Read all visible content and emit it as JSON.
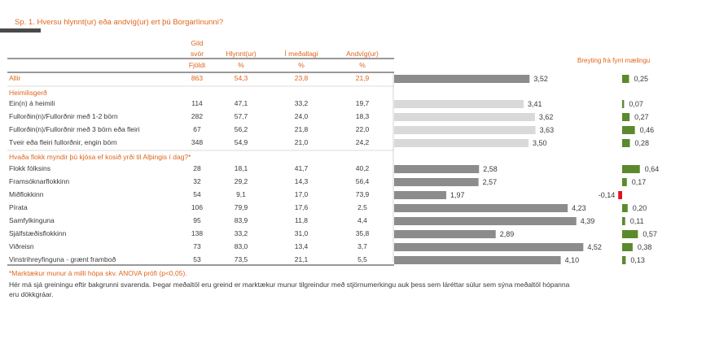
{
  "question": "Sp. 1. Hversu hlynnt(ur) eða andvíg(ur) ert þú Borgarlínunni?",
  "headers": {
    "gild_top": "Gild",
    "gild_mid": "svör",
    "fjoldi": "Fjöldi",
    "hlynnt": "Hlynnt(ur)",
    "medallagi": "Í meðallagi",
    "andvig": "Andvíg(ur)",
    "pct": "%"
  },
  "change_header": "Breyting frá fyrri mælingu",
  "sections": [
    {
      "heading": ""
    },
    {
      "heading": "Heimilisgerð"
    },
    {
      "heading": "Hvaða flokk myndir þú kjósa ef kosið yrði til Alþingis í dag?*"
    }
  ],
  "rows": [
    {
      "label": "Allir",
      "n": "863",
      "hlynnt": "54,3",
      "medallagi": "23,8",
      "andvig": "21,9",
      "mean": "3,52",
      "change": "0,25"
    },
    {
      "label": "Ein(n) á heimili",
      "n": "114",
      "hlynnt": "47,1",
      "medallagi": "33,2",
      "andvig": "19,7",
      "mean": "3,41",
      "change": "0,07"
    },
    {
      "label": "Fullorðin(n)/Fullorðnir með 1-2 börn",
      "n": "282",
      "hlynnt": "57,7",
      "medallagi": "24,0",
      "andvig": "18,3",
      "mean": "3,62",
      "change": "0,27"
    },
    {
      "label": "Fullorðin(n)/Fullorðnir með 3 börn eða fleiri",
      "n": "67",
      "hlynnt": "56,2",
      "medallagi": "21,8",
      "andvig": "22,0",
      "mean": "3,63",
      "change": "0,46"
    },
    {
      "label": "Tveir eða fleiri fullorðnir, engin börn",
      "n": "348",
      "hlynnt": "54,9",
      "medallagi": "21,0",
      "andvig": "24,2",
      "mean": "3,50",
      "change": "0,28"
    },
    {
      "label": "Flokk fólksins",
      "n": "28",
      "hlynnt": "18,1",
      "medallagi": "41,7",
      "andvig": "40,2",
      "mean": "2,58",
      "change": "0,64"
    },
    {
      "label": "Framsóknarflokkinn",
      "n": "32",
      "hlynnt": "29,2",
      "medallagi": "14,3",
      "andvig": "56,4",
      "mean": "2,57",
      "change": "0,17"
    },
    {
      "label": "Miðflokkinn",
      "n": "54",
      "hlynnt": "9,1",
      "medallagi": "17,0",
      "andvig": "73,9",
      "mean": "1,97",
      "change": "-0,14"
    },
    {
      "label": "Pírata",
      "n": "106",
      "hlynnt": "79,9",
      "medallagi": "17,6",
      "andvig": "2,5",
      "mean": "4,23",
      "change": "0,20"
    },
    {
      "label": "Samfylkinguna",
      "n": "95",
      "hlynnt": "83,9",
      "medallagi": "11,8",
      "andvig": "4,4",
      "mean": "4,39",
      "change": "0,11"
    },
    {
      "label": "Sjálfstæðisflokkinn",
      "n": "138",
      "hlynnt": "33,2",
      "medallagi": "31,0",
      "andvig": "35,8",
      "mean": "2,89",
      "change": "0,57"
    },
    {
      "label": "Viðreisn",
      "n": "73",
      "hlynnt": "83,0",
      "medallagi": "13,4",
      "andvig": "3,7",
      "mean": "4,52",
      "change": "0,38"
    },
    {
      "label": "Vinstrihreyfinguna - grænt framboð",
      "n": "53",
      "hlynnt": "73,5",
      "medallagi": "21,1",
      "andvig": "5,5",
      "mean": "4,10",
      "change": "0,13"
    }
  ],
  "chart_data": [
    {
      "type": "bar",
      "categories": [
        "Allir",
        "Ein(n) á heimili",
        "Fullorðin(n)/Fullorðnir með 1-2 börn",
        "Fullorðin(n)/Fullorðnir með 3 börn eða fleiri",
        "Tveir eða fleiri fullorðnir, engin börn",
        "Flokk fólksins",
        "Framsóknarflokkinn",
        "Miðflokkinn",
        "Pírata",
        "Samfylkinguna",
        "Sjálfstæðisflokkinn",
        "Viðreisn",
        "Vinstrihreyfinguna - grænt framboð"
      ],
      "values": [
        3.52,
        3.41,
        3.62,
        3.63,
        3.5,
        2.58,
        2.57,
        1.97,
        4.23,
        4.39,
        2.89,
        4.52,
        4.1
      ],
      "xlim": [
        1,
        5
      ],
      "orientation": "horizontal",
      "colors": {
        "main": "#8c8c8c",
        "light": "#d9d9d9"
      }
    },
    {
      "type": "bar",
      "title": "Breyting frá fyrri mælingu",
      "categories": [
        "Allir",
        "Ein(n) á heimili",
        "Fullorðin(n)/Fullorðnir með 1-2 börn",
        "Fullorðin(n)/Fullorðnir með 3 börn eða fleiri",
        "Tveir eða fleiri fullorðnir, engin börn",
        "Flokk fólksins",
        "Framsóknarflokkinn",
        "Miðflokkinn",
        "Pírata",
        "Samfylkinguna",
        "Sjálfstæðisflokkinn",
        "Viðreisn",
        "Vinstrihreyfinguna - grænt framboð"
      ],
      "values": [
        0.25,
        0.07,
        0.27,
        0.46,
        0.28,
        0.64,
        0.17,
        -0.14,
        0.2,
        0.11,
        0.57,
        0.38,
        0.13
      ],
      "orientation": "horizontal",
      "colors": {
        "positive": "#5b8a2e",
        "negative": "#e8101a"
      }
    }
  ],
  "footnotes": {
    "sig": "*Marktækur munur á milli hópa skv. ANOVA prófi (p<0,05).",
    "desc1": "Hér má sjá greiningu eftir bakgrunni svarenda. Þegar meðaltöl eru greind er marktækur munur tilgreindur með stjörnumerkingu auk þess sem láréttar súlur sem sýna meðaltöl hópanna",
    "desc2": "eru dökkgráar."
  }
}
